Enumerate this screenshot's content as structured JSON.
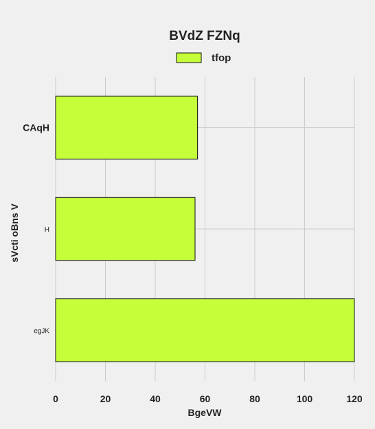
{
  "chart_data": {
    "type": "bar",
    "orientation": "horizontal",
    "title": "BVdZ FZNq",
    "xlabel": "BgeVW",
    "ylabel": "sVcti  oBns V",
    "categories": [
      "CAqH",
      "H",
      "egJK"
    ],
    "category_styles": [
      "large-bold",
      "small",
      "small"
    ],
    "series": [
      {
        "name": "tfop",
        "values": [
          57,
          56,
          120
        ],
        "color": "#c4ff3a"
      }
    ],
    "xlim": [
      0,
      120
    ],
    "xticks": [
      "0",
      "20",
      "40",
      "60",
      "80",
      "100",
      "120"
    ],
    "grid": true,
    "legend_position": "top-center"
  },
  "colors": {
    "background": "#f0f0f0",
    "grid": "#cbcbcb",
    "text": "#222222",
    "bar_edge": "#111111"
  }
}
